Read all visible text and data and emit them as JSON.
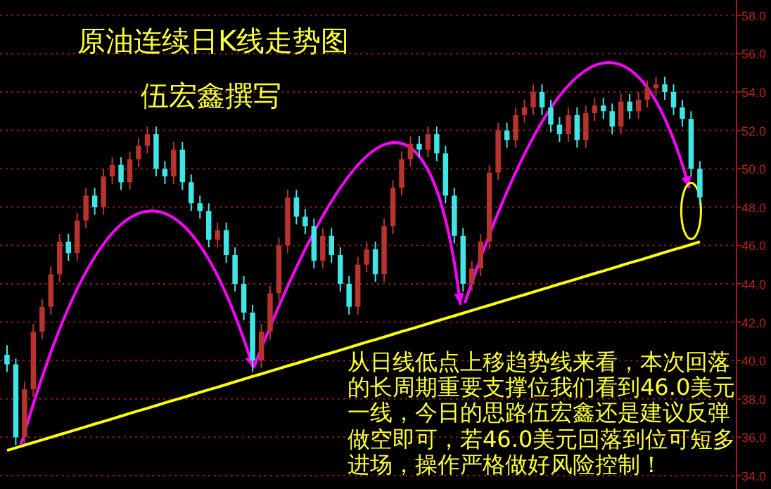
{
  "chart_data": {
    "type": "candlestick",
    "title": "原油连续日K线走势图",
    "subtitle": "伍宏鑫撰写",
    "annotations": [
      "从日线低点上移趋势线来看，本次回落的长周期重要支撑位我们看到46.0美元一线，今日的思路伍宏鑫还是建议反弹做空即可，若46.0美元回落到位可短多进场，操作严格做好风险控制！"
    ],
    "categories": [
      null,
      null,
      null,
      null,
      null,
      null,
      null,
      null,
      null,
      null,
      null,
      null,
      null,
      null,
      null,
      null,
      null,
      null,
      null,
      null,
      null,
      null,
      null,
      null,
      null,
      null,
      null,
      null,
      null,
      null,
      null,
      null,
      null,
      null,
      null,
      null,
      null,
      null,
      null,
      null,
      null,
      null,
      null,
      null,
      null,
      null,
      null,
      null,
      null,
      null,
      null,
      null,
      null,
      null,
      null,
      null,
      null,
      null,
      null,
      null,
      null,
      null,
      null,
      null,
      null,
      null,
      null,
      null,
      null,
      null,
      null,
      null,
      null,
      null,
      null,
      null,
      null,
      null,
      null,
      null
    ],
    "ohlc": [
      [
        40.3,
        40.8,
        39.4,
        39.8
      ],
      [
        39.8,
        40.1,
        35.6,
        36.0
      ],
      [
        36.0,
        38.9,
        35.7,
        38.5
      ],
      [
        38.5,
        41.9,
        38.1,
        41.5
      ],
      [
        41.5,
        43.2,
        41.1,
        42.8
      ],
      [
        42.8,
        44.9,
        42.4,
        44.5
      ],
      [
        44.5,
        46.6,
        44.1,
        46.2
      ],
      [
        46.2,
        46.6,
        45.2,
        45.6
      ],
      [
        45.6,
        47.7,
        45.2,
        47.3
      ],
      [
        47.3,
        49.0,
        46.9,
        48.6
      ],
      [
        48.6,
        49.0,
        47.6,
        48.0
      ],
      [
        48.0,
        50.0,
        47.6,
        49.6
      ],
      [
        49.6,
        50.6,
        49.2,
        50.2
      ],
      [
        50.2,
        50.6,
        48.9,
        49.3
      ],
      [
        49.3,
        50.9,
        48.9,
        50.5
      ],
      [
        50.5,
        51.6,
        50.1,
        51.2
      ],
      [
        51.2,
        52.2,
        50.8,
        51.8
      ],
      [
        51.8,
        52.2,
        49.6,
        50.0
      ],
      [
        50.0,
        50.4,
        49.2,
        49.6
      ],
      [
        49.6,
        51.4,
        49.2,
        51.0
      ],
      [
        51.0,
        51.4,
        48.9,
        49.3
      ],
      [
        49.3,
        49.7,
        47.8,
        48.2
      ],
      [
        48.2,
        48.6,
        47.4,
        47.8
      ],
      [
        47.8,
        48.2,
        45.9,
        46.3
      ],
      [
        46.3,
        47.2,
        45.9,
        46.8
      ],
      [
        46.8,
        47.2,
        45.1,
        45.5
      ],
      [
        45.5,
        45.9,
        43.6,
        44.0
      ],
      [
        44.0,
        44.4,
        42.1,
        42.5
      ],
      [
        42.5,
        42.9,
        39.4,
        40.0
      ],
      [
        40.0,
        41.9,
        39.6,
        41.5
      ],
      [
        41.5,
        43.9,
        41.1,
        43.5
      ],
      [
        43.5,
        46.4,
        43.1,
        46.0
      ],
      [
        46.0,
        48.9,
        45.6,
        48.5
      ],
      [
        48.5,
        48.9,
        47.1,
        47.5
      ],
      [
        47.5,
        47.9,
        46.6,
        47.0
      ],
      [
        47.0,
        47.4,
        44.8,
        45.2
      ],
      [
        45.2,
        46.9,
        44.8,
        46.5
      ],
      [
        46.5,
        46.9,
        45.1,
        45.5
      ],
      [
        45.5,
        45.9,
        43.6,
        44.0
      ],
      [
        44.0,
        44.4,
        42.4,
        42.8
      ],
      [
        42.8,
        45.4,
        42.4,
        45.0
      ],
      [
        45.0,
        46.2,
        44.6,
        45.8
      ],
      [
        45.8,
        46.2,
        44.1,
        44.5
      ],
      [
        44.5,
        47.4,
        44.1,
        47.0
      ],
      [
        47.0,
        49.4,
        46.6,
        49.0
      ],
      [
        49.0,
        50.9,
        48.6,
        50.5
      ],
      [
        50.5,
        51.7,
        50.1,
        51.3
      ],
      [
        51.3,
        51.7,
        50.6,
        51.0
      ],
      [
        51.0,
        52.2,
        50.6,
        51.8
      ],
      [
        51.8,
        52.2,
        50.4,
        50.8
      ],
      [
        50.8,
        51.2,
        48.2,
        48.6
      ],
      [
        48.6,
        49.0,
        46.1,
        46.5
      ],
      [
        46.5,
        46.9,
        43.6,
        44.0
      ],
      [
        44.0,
        45.2,
        43.6,
        44.8
      ],
      [
        44.8,
        46.6,
        44.4,
        46.2
      ],
      [
        46.2,
        50.2,
        45.8,
        49.8
      ],
      [
        49.8,
        52.4,
        49.4,
        52.0
      ],
      [
        52.0,
        52.4,
        51.1,
        51.5
      ],
      [
        51.5,
        53.2,
        51.1,
        52.8
      ],
      [
        52.8,
        53.6,
        52.4,
        53.2
      ],
      [
        53.2,
        54.4,
        52.8,
        54.0
      ],
      [
        54.0,
        54.4,
        52.8,
        53.2
      ],
      [
        53.2,
        53.6,
        51.9,
        52.3
      ],
      [
        52.3,
        52.7,
        51.4,
        51.8
      ],
      [
        51.8,
        53.2,
        51.4,
        52.8
      ],
      [
        52.8,
        53.2,
        51.1,
        51.5
      ],
      [
        51.5,
        53.3,
        51.1,
        52.9
      ],
      [
        52.9,
        53.7,
        52.5,
        53.3
      ],
      [
        53.3,
        53.7,
        52.6,
        53.0
      ],
      [
        53.0,
        53.4,
        51.8,
        52.2
      ],
      [
        52.2,
        53.9,
        51.8,
        53.5
      ],
      [
        53.5,
        53.9,
        52.6,
        53.0
      ],
      [
        53.0,
        54.0,
        52.6,
        53.6
      ],
      [
        53.6,
        54.6,
        53.2,
        54.2
      ],
      [
        54.2,
        54.8,
        53.8,
        54.4
      ],
      [
        54.4,
        54.8,
        53.6,
        54.0
      ],
      [
        54.0,
        54.4,
        52.8,
        53.2
      ],
      [
        53.2,
        53.6,
        52.2,
        52.6
      ],
      [
        52.6,
        53.0,
        49.6,
        50.0
      ],
      [
        50.0,
        50.4,
        48.1,
        48.5
      ]
    ],
    "colors": [
      "#3fe6e6",
      "#3fe6e6",
      "#b8322e",
      "#b8322e",
      "#b8322e",
      "#b8322e",
      "#b8322e",
      "#3fe6e6",
      "#b8322e",
      "#b8322e",
      "#3fe6e6",
      "#b8322e",
      "#b8322e",
      "#3fe6e6",
      "#b8322e",
      "#b8322e",
      "#b8322e",
      "#3fe6e6",
      "#3fe6e6",
      "#b8322e",
      "#3fe6e6",
      "#3fe6e6",
      "#3fe6e6",
      "#3fe6e6",
      "#b8322e",
      "#3fe6e6",
      "#3fe6e6",
      "#3fe6e6",
      "#3fe6e6",
      "#b8322e",
      "#b8322e",
      "#b8322e",
      "#b8322e",
      "#3fe6e6",
      "#3fe6e6",
      "#3fe6e6",
      "#b8322e",
      "#3fe6e6",
      "#3fe6e6",
      "#3fe6e6",
      "#b8322e",
      "#b8322e",
      "#3fe6e6",
      "#b8322e",
      "#b8322e",
      "#b8322e",
      "#b8322e",
      "#3fe6e6",
      "#b8322e",
      "#3fe6e6",
      "#3fe6e6",
      "#3fe6e6",
      "#3fe6e6",
      "#b8322e",
      "#b8322e",
      "#b8322e",
      "#b8322e",
      "#3fe6e6",
      "#b8322e",
      "#b8322e",
      "#b8322e",
      "#3fe6e6",
      "#3fe6e6",
      "#3fe6e6",
      "#b8322e",
      "#3fe6e6",
      "#b8322e",
      "#b8322e",
      "#3fe6e6",
      "#3fe6e6",
      "#b8322e",
      "#3fe6e6",
      "#b8322e",
      "#b8322e",
      "#b8322e",
      "#3fe6e6",
      "#3fe6e6",
      "#3fe6e6",
      "#3fe6e6",
      "#3fe6e6"
    ],
    "series": [
      {
        "type": "line",
        "color": "#ffff00",
        "values": [
          35.31,
          35.45,
          35.59,
          35.72,
          35.86,
          36.0,
          36.14,
          36.27,
          36.41,
          36.55,
          36.69,
          36.82,
          36.96,
          37.1,
          37.24,
          37.38,
          37.51,
          37.65,
          37.79,
          37.93,
          38.06,
          38.2,
          38.34,
          38.48,
          38.61,
          38.75,
          38.89,
          39.03,
          39.17,
          39.3,
          39.44,
          39.58,
          39.72,
          39.85,
          39.99,
          40.13,
          40.27,
          40.4,
          40.54,
          40.68,
          40.82,
          40.96,
          41.09,
          41.23,
          41.37,
          41.51,
          41.64,
          41.78,
          41.92,
          42.06,
          42.2,
          42.33,
          42.47,
          42.61,
          42.75,
          42.88,
          43.02,
          43.16,
          43.3,
          43.43,
          43.57,
          43.71,
          43.85,
          43.99,
          44.12,
          44.26,
          44.4,
          44.54,
          44.67,
          44.81,
          44.95,
          45.09,
          45.22,
          45.36,
          45.5,
          45.64,
          45.78,
          45.91,
          46.05,
          46.19
        ]
      }
    ],
    "ylim": [
      33.3,
      58.8
    ],
    "yticks": [
      {
        "value": 34,
        "label": "34.0"
      },
      {
        "value": 36,
        "label": "36.0"
      },
      {
        "value": 38,
        "label": "38.0"
      },
      {
        "value": 40,
        "label": "40.0"
      },
      {
        "value": 42,
        "label": "42.0"
      },
      {
        "value": 44,
        "label": "44.0"
      },
      {
        "value": 46,
        "label": "46.0"
      },
      {
        "value": 48,
        "label": "48.0"
      },
      {
        "value": 50,
        "label": "50.0"
      },
      {
        "value": 52,
        "label": "52.0"
      },
      {
        "value": 54,
        "label": "54.0"
      },
      {
        "value": 56,
        "label": "56.0"
      },
      {
        "value": 58,
        "label": "58.0"
      }
    ],
    "grid": "y",
    "tick_labels": "y"
  }
}
